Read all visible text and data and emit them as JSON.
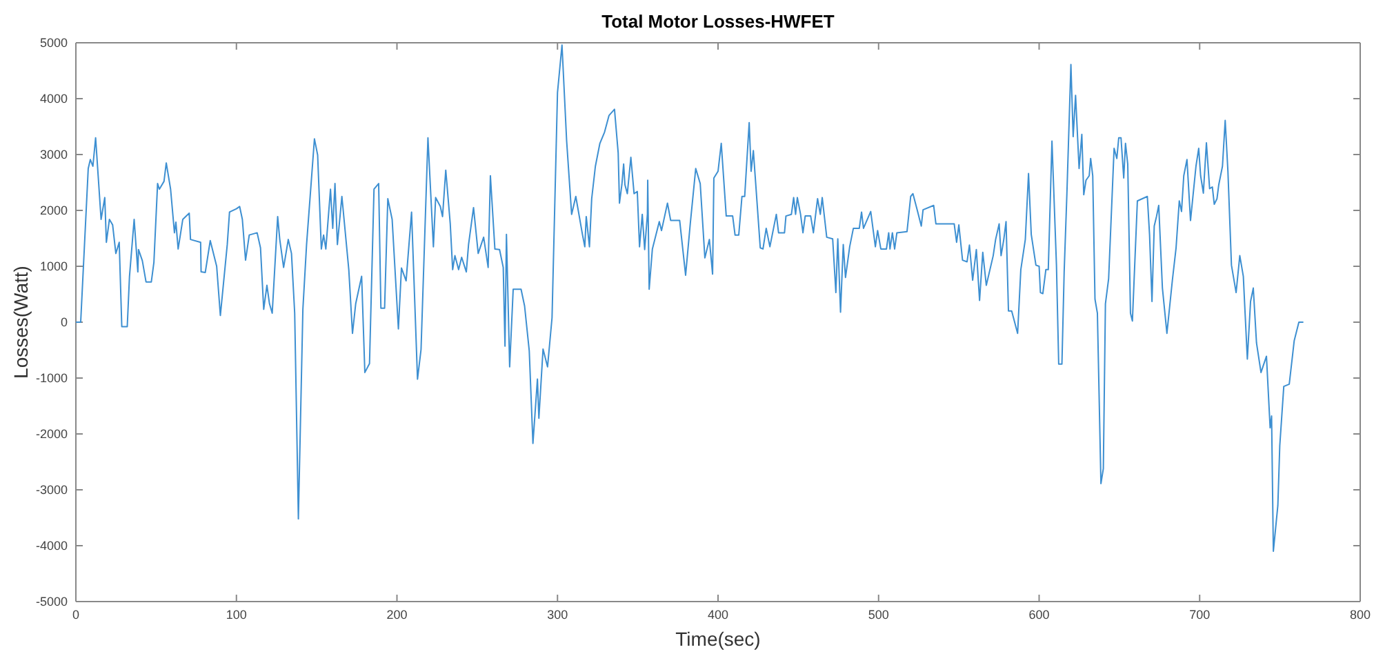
{
  "chart_data": {
    "type": "line",
    "title": "Total Motor Losses-HWFET",
    "xlabel": "Time(sec)",
    "ylabel": "Losses(Watt)",
    "xlim": [
      0,
      800
    ],
    "xticks": [
      0,
      100,
      200,
      300,
      400,
      500,
      600,
      700,
      800
    ],
    "ylim": [
      -5000,
      5000
    ],
    "yticks": [
      -5000,
      -4000,
      -3000,
      -2000,
      -1000,
      0,
      1000,
      2000,
      3000,
      4000,
      5000
    ],
    "grid": false,
    "marker": "none",
    "line_style": "solid",
    "series": [
      {
        "color": "#3d8fd1",
        "x": [
          0,
          3,
          7.7,
          9,
          10.6,
          12.3,
          15.7,
          18,
          19,
          20.9,
          22.9,
          24.9,
          27,
          28.6,
          32,
          33.4,
          36.3,
          38.6,
          39,
          41.4,
          43.7,
          47,
          48.6,
          50.9,
          52,
          54.9,
          56.3,
          59,
          61.4,
          62.3,
          63.7,
          66.6,
          70.6,
          71.4,
          77.7,
          78,
          80.6,
          83.7,
          87.7,
          90,
          94.3,
          95.7,
          100,
          102,
          103.7,
          105.7,
          108,
          112.9,
          115,
          117,
          119,
          120.6,
          122.3,
          125.7,
          127,
          129.4,
          132.3,
          134.3,
          136.3,
          138.6,
          141.4,
          143.7,
          148.6,
          150.6,
          152.9,
          154.3,
          155.7,
          158.6,
          160,
          161.4,
          162.9,
          165.7,
          170,
          172.3,
          174.3,
          178,
          180,
          182.9,
          185.7,
          188.6,
          190,
          192.3,
          194.3,
          197,
          200.9,
          202.8,
          205.7,
          209.1,
          212.8,
          215,
          219.3,
          222.7,
          224.1,
          227,
          228.4,
          230.4,
          233.2,
          234.7,
          236.1,
          238.4,
          240.3,
          243.2,
          244.6,
          247.7,
          250.6,
          254,
          256.8,
          258.2,
          261,
          263.9,
          266.2,
          267.3,
          268.2,
          270.2,
          272.4,
          277.3,
          279.5,
          282.4,
          284.7,
          287.5,
          288.4,
          291,
          293.8,
          296.6,
          300,
          302.8,
          305.7,
          308.8,
          311.4,
          315.6,
          317,
          317.9,
          319.9,
          321.3,
          323.6,
          326.4,
          329.3,
          332.1,
          335.5,
          337.8,
          338.6,
          340.1,
          341.2,
          342,
          343.5,
          345.7,
          347.7,
          349.7,
          351.1,
          352.8,
          354.3,
          356,
          356.2,
          357.1,
          359.1,
          363.4,
          364.8,
          368.5,
          370.5,
          376.1,
          379.8,
          382.7,
          386.1,
          388.9,
          391.8,
          394.6,
          396.6,
          397.4,
          400,
          402,
          405.1,
          409.1,
          410.6,
          412.9,
          414.9,
          416.6,
          419.4,
          420.6,
          422,
          426.3,
          428,
          430,
          432.3,
          436.3,
          437.7,
          441.4,
          442.3,
          445.7,
          447.1,
          448.3,
          449.4,
          451.4,
          452.9,
          454.3,
          457.7,
          459.4,
          462,
          463.7,
          464.9,
          467.7,
          471.4,
          473.4,
          474.6,
          476.3,
          478,
          479.4,
          482,
          484.3,
          488,
          489.4,
          490.6,
          495.1,
          498,
          499.4,
          501.4,
          504.9,
          506.3,
          507.1,
          508.6,
          510,
          511.4,
          517.7,
          520,
          521.4,
          524.3,
          526.6,
          527.7,
          534.3,
          535.7,
          547.1,
          548.6,
          550,
          552.3,
          555.1,
          556.6,
          558.6,
          560.9,
          562.9,
          564.9,
          567.1,
          571.4,
          572.9,
          575.1,
          576.3,
          578,
          579.4,
          580.9,
          582.9,
          586.6,
          588.6,
          591.4,
          593.4,
          595.1,
          598,
          600,
          600.8,
          602.3,
          604.2,
          605.7,
          608,
          610.8,
          612.2,
          614.2,
          615.6,
          617.3,
          619.8,
          621.2,
          622.7,
          624.9,
          626.6,
          627.8,
          629.2,
          631.2,
          632.1,
          633.4,
          634.8,
          636.3,
          638.5,
          640,
          641.3,
          643.3,
          646.7,
          648.4,
          649.6,
          651,
          652.7,
          653.8,
          655.2,
          656.9,
          658.1,
          661.2,
          667.4,
          668.8,
          670.3,
          671.7,
          673.1,
          674.5,
          676.8,
          679.6,
          683,
          685.3,
          687.3,
          688.7,
          690.1,
          692.1,
          694.3,
          697.7,
          699.4,
          700.6,
          702.3,
          704.2,
          706.2,
          707.9,
          709.1,
          710.8,
          711.9,
          714.2,
          715.9,
          717.6,
          719.8,
          722.7,
          725,
          727.2,
          728.3,
          729.7,
          731.7,
          733.4,
          735.4,
          738.2,
          741.6,
          743.9,
          744.8,
          745.9,
          748.7,
          749.9,
          752.4,
          755.8,
          758.9,
          761.8,
          764.6
        ],
        "values": [
          0,
          0,
          2750,
          2910,
          2790,
          3300,
          1840,
          2230,
          1430,
          1840,
          1740,
          1230,
          1430,
          -80,
          -80,
          820,
          1840,
          900,
          1300,
          1100,
          720,
          720,
          1070,
          2480,
          2380,
          2520,
          2850,
          2380,
          1600,
          1790,
          1310,
          1840,
          1950,
          1480,
          1430,
          900,
          890,
          1460,
          1000,
          120,
          1390,
          1970,
          2030,
          2070,
          1840,
          1110,
          1560,
          1600,
          1330,
          230,
          660,
          330,
          160,
          1890,
          1480,
          980,
          1480,
          1230,
          160,
          -3520,
          230,
          1390,
          3280,
          2990,
          1310,
          1560,
          1310,
          2380,
          1680,
          2480,
          1390,
          2250,
          940,
          -200,
          330,
          820,
          -900,
          -740,
          2380,
          2480,
          250,
          250,
          2210,
          1840,
          -120,
          970,
          740,
          1970,
          -1020,
          -490,
          3300,
          1350,
          2230,
          2070,
          1890,
          2720,
          1760,
          940,
          1190,
          940,
          1160,
          900,
          1390,
          2050,
          1230,
          1520,
          980,
          2620,
          1310,
          1300,
          980,
          -430,
          1570,
          -800,
          590,
          590,
          290,
          -510,
          -2170,
          -1020,
          -1720,
          -480,
          -800,
          80,
          4110,
          4960,
          3240,
          1930,
          2250,
          1560,
          1350,
          1890,
          1350,
          2210,
          2790,
          3200,
          3400,
          3700,
          3810,
          3030,
          2130,
          2460,
          2830,
          2460,
          2300,
          2950,
          2300,
          2340,
          1350,
          1930,
          1300,
          1930,
          2540,
          590,
          1310,
          1800,
          1640,
          2130,
          1820,
          1820,
          840,
          1760,
          2750,
          2480,
          1150,
          1480,
          860,
          2580,
          2700,
          3200,
          1900,
          1900,
          1560,
          1560,
          2250,
          2250,
          3570,
          2700,
          3070,
          1330,
          1310,
          1680,
          1350,
          1930,
          1600,
          1600,
          1900,
          1930,
          2230,
          1930,
          2230,
          1930,
          1600,
          1900,
          1900,
          1600,
          2210,
          1930,
          2230,
          1520,
          1490,
          530,
          1490,
          180,
          1390,
          800,
          1350,
          1680,
          1680,
          1970,
          1680,
          1980,
          1350,
          1640,
          1310,
          1310,
          1600,
          1310,
          1600,
          1310,
          1600,
          1620,
          2250,
          2300,
          1980,
          1720,
          2010,
          2090,
          1760,
          1760,
          1430,
          1740,
          1110,
          1080,
          1380,
          750,
          1300,
          390,
          1250,
          660,
          1190,
          1480,
          1760,
          1190,
          1480,
          1800,
          200,
          200,
          -200,
          940,
          1480,
          2660,
          1570,
          1020,
          1000,
          530,
          510,
          940,
          940,
          3240,
          1020,
          -750,
          -750,
          900,
          2300,
          4610,
          3320,
          4060,
          2750,
          3360,
          2280,
          2540,
          2620,
          2930,
          2620,
          410,
          160,
          -2890,
          -2620,
          330,
          780,
          3110,
          2930,
          3300,
          3300,
          2580,
          3200,
          2830,
          160,
          20,
          2170,
          2250,
          1560,
          370,
          1720,
          1890,
          2090,
          610,
          -200,
          750,
          1330,
          2170,
          1980,
          2620,
          2910,
          1820,
          2790,
          3110,
          2620,
          2310,
          3210,
          2390,
          2420,
          2110,
          2210,
          2460,
          2790,
          3610,
          2700,
          1020,
          530,
          1190,
          820,
          160,
          -660,
          370,
          610,
          -370,
          -900,
          -610,
          -1890,
          -1680,
          -4100,
          -3280,
          -2210,
          -1150,
          -1110,
          -330,
          0,
          0
        ]
      }
    ]
  }
}
